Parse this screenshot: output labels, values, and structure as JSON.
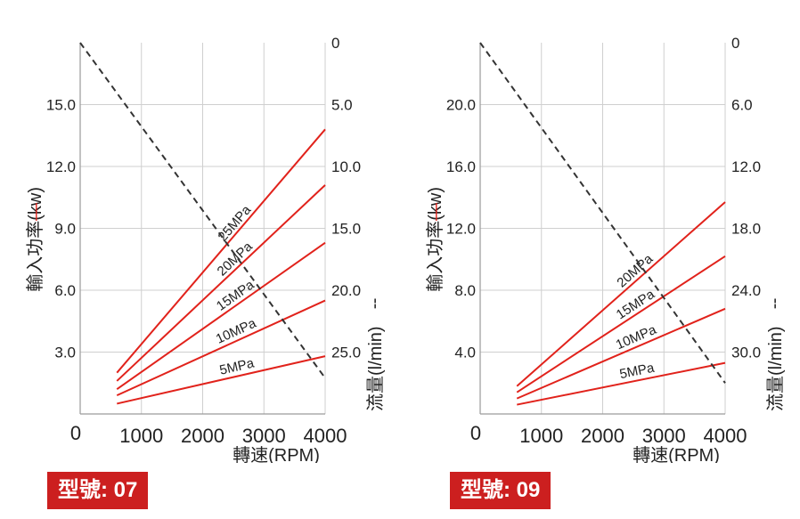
{
  "colors": {
    "power_line": "#e1221b",
    "flow_line": "#333333",
    "grid": "#cfcfcf",
    "axis_text": "#222222",
    "badge_bg": "#cc1f1f",
    "badge_text": "#ffffff"
  },
  "chart_data": [
    {
      "type": "line",
      "model_label": "型號: 07",
      "xlabel": "轉速(RPM)",
      "ylabel_left": "輸入功率(kw)",
      "ylabel_left_marker": "—",
      "ylabel_right": "流量(l/min)",
      "ylabel_right_marker": "╌",
      "origin_label": "0",
      "x_ticks": [
        "1000",
        "2000",
        "3000",
        "4000"
      ],
      "x_tick_values": [
        1000,
        2000,
        3000,
        4000
      ],
      "xlim": [
        0,
        4000
      ],
      "left_ticks": [
        "3.0",
        "6.0",
        "9.0",
        "12.0",
        "15.0"
      ],
      "left_tick_values": [
        3,
        6,
        9,
        12,
        15
      ],
      "ylim_left": [
        0,
        18
      ],
      "right_ticks": [
        "0",
        "5.0",
        "10.0",
        "15.0",
        "20.0",
        "25.0"
      ],
      "right_tick_values": [
        0,
        5,
        10,
        15,
        20,
        25
      ],
      "ylim_right_inverted": [
        0,
        30
      ],
      "grid": true,
      "series": [
        {
          "name": "5MPa",
          "x": [
            600,
            4000
          ],
          "y": [
            0.5,
            2.8
          ]
        },
        {
          "name": "10MPa",
          "x": [
            600,
            4000
          ],
          "y": [
            0.9,
            5.5
          ]
        },
        {
          "name": "15MPa",
          "x": [
            600,
            4000
          ],
          "y": [
            1.2,
            8.3
          ]
        },
        {
          "name": "20MPa",
          "x": [
            600,
            4000
          ],
          "y": [
            1.6,
            11.1
          ]
        },
        {
          "name": "25MPa",
          "x": [
            600,
            4000
          ],
          "y": [
            2.0,
            13.8
          ]
        }
      ],
      "flow_series": {
        "x": [
          0,
          4000
        ],
        "y": [
          0,
          27.1
        ]
      }
    },
    {
      "type": "line",
      "model_label": "型號: 09",
      "xlabel": "轉速(RPM)",
      "ylabel_left": "輸入功率(kw)",
      "ylabel_left_marker": "—",
      "ylabel_right": "流量(l/min)",
      "ylabel_right_marker": "╌",
      "origin_label": "0",
      "x_ticks": [
        "1000",
        "2000",
        "3000",
        "4000"
      ],
      "x_tick_values": [
        1000,
        2000,
        3000,
        4000
      ],
      "xlim": [
        0,
        4000
      ],
      "left_ticks": [
        "4.0",
        "8.0",
        "12.0",
        "16.0",
        "20.0"
      ],
      "left_tick_values": [
        4,
        8,
        12,
        16,
        20
      ],
      "ylim_left": [
        0,
        24
      ],
      "right_ticks": [
        "0",
        "6.0",
        "12.0",
        "18.0",
        "24.0",
        "30.0"
      ],
      "right_tick_values": [
        0,
        6,
        12,
        18,
        24,
        30
      ],
      "ylim_right_inverted": [
        0,
        36
      ],
      "grid": true,
      "series": [
        {
          "name": "5MPa",
          "x": [
            600,
            4000
          ],
          "y": [
            0.6,
            3.3
          ]
        },
        {
          "name": "10MPa",
          "x": [
            600,
            4000
          ],
          "y": [
            1.0,
            6.8
          ]
        },
        {
          "name": "15MPa",
          "x": [
            600,
            4000
          ],
          "y": [
            1.4,
            10.2
          ]
        },
        {
          "name": "20MPa",
          "x": [
            600,
            4000
          ],
          "y": [
            1.8,
            13.7
          ]
        }
      ],
      "flow_series": {
        "x": [
          0,
          4000
        ],
        "y": [
          0,
          33.0
        ]
      }
    }
  ]
}
